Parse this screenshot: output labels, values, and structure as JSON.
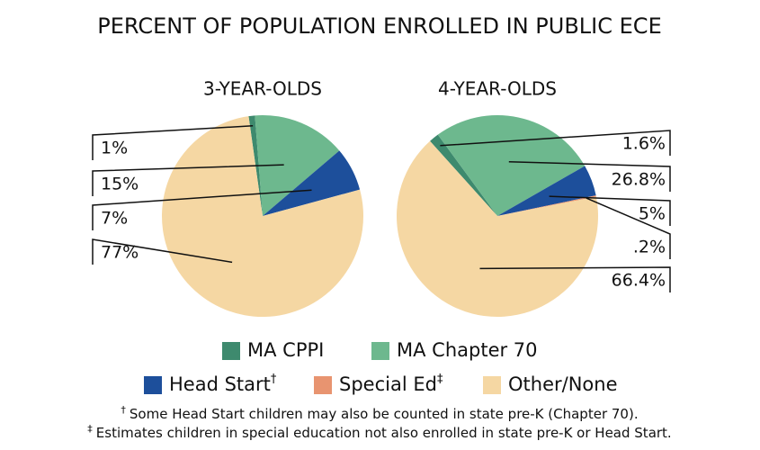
{
  "title": "PERCENT OF POPULATION ENROLLED IN PUBLIC ECE",
  "chart_data": [
    {
      "type": "pie",
      "title": "3-YEAR-OLDS",
      "categories": [
        "MA CPPI",
        "MA Chapter 70",
        "Head Start",
        "Other/None"
      ],
      "values": [
        1,
        15,
        7,
        77
      ],
      "value_labels": [
        "1%",
        "15%",
        "7%",
        "77%"
      ],
      "colors": [
        "#3e8a6e",
        "#6db88e",
        "#1d4f9b",
        "#f5d7a3"
      ]
    },
    {
      "type": "pie",
      "title": "4-YEAR-OLDS",
      "categories": [
        "MA CPPI",
        "MA Chapter 70",
        "Head Start",
        "Special Ed",
        "Other/None"
      ],
      "values": [
        1.6,
        26.8,
        5,
        0.2,
        66.4
      ],
      "value_labels": [
        "1.6%",
        "26.8%",
        "5%",
        ".2%",
        "66.4%"
      ],
      "colors": [
        "#3e8a6e",
        "#6db88e",
        "#1d4f9b",
        "#e89470",
        "#f5d7a3"
      ]
    }
  ],
  "legend": [
    {
      "name": "MA CPPI",
      "color": "#3e8a6e"
    },
    {
      "name": "MA Chapter 70",
      "color": "#6db88e"
    },
    {
      "name": "Head Start",
      "note": "†",
      "color": "#1d4f9b"
    },
    {
      "name": "Special Ed",
      "note": "‡",
      "color": "#e89470"
    },
    {
      "name": "Other/None",
      "color": "#f5d7a3"
    }
  ],
  "footnotes": [
    {
      "mark": "†",
      "text": "Some Head Start children may also be counted in state pre-K (Chapter 70)."
    },
    {
      "mark": "‡",
      "text": "Estimates children in special education not also enrolled in state pre-K or Head Start."
    }
  ]
}
